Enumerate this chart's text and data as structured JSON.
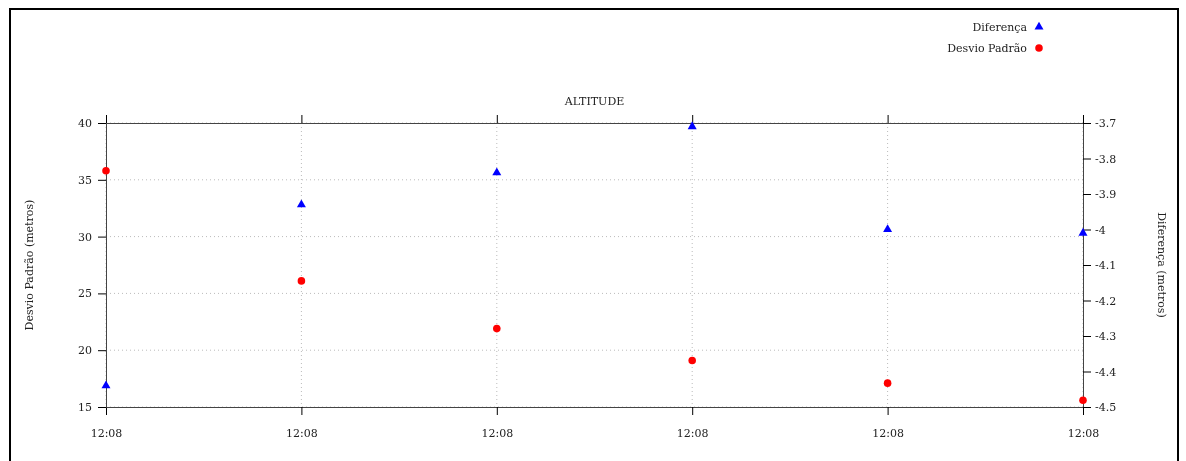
{
  "chart_data": {
    "type": "scatter",
    "title": "ALTITUDE",
    "ylabel": "Desvio Padrão (metros)",
    "y2label": "Diferença (metros)",
    "categories": [
      "12:08",
      "12:08",
      "12:08",
      "12:08",
      "12:08",
      "12:08"
    ],
    "series": [
      {
        "name": "Diferença",
        "color": "#0000ff",
        "marker": "triangle",
        "axis": "y2",
        "values": [
          -4.44,
          -3.93,
          -3.84,
          -3.71,
          -4.0,
          -4.01
        ]
      },
      {
        "name": "Desvio Padrão",
        "color": "#ff0000",
        "marker": "circle",
        "values": [
          35.8,
          26.1,
          21.9,
          19.1,
          17.1,
          15.6
        ]
      }
    ],
    "ylim": [
      15,
      40
    ],
    "yticks": [
      15,
      20,
      25,
      30,
      35,
      40
    ],
    "y2lim": [
      -4.5,
      -3.7
    ],
    "y2ticks": [
      -4.5,
      -4.4,
      -4.3,
      -4.2,
      -4.1,
      -4,
      -3.9,
      -3.8,
      -3.7
    ],
    "grid": true,
    "legend": "top right"
  }
}
